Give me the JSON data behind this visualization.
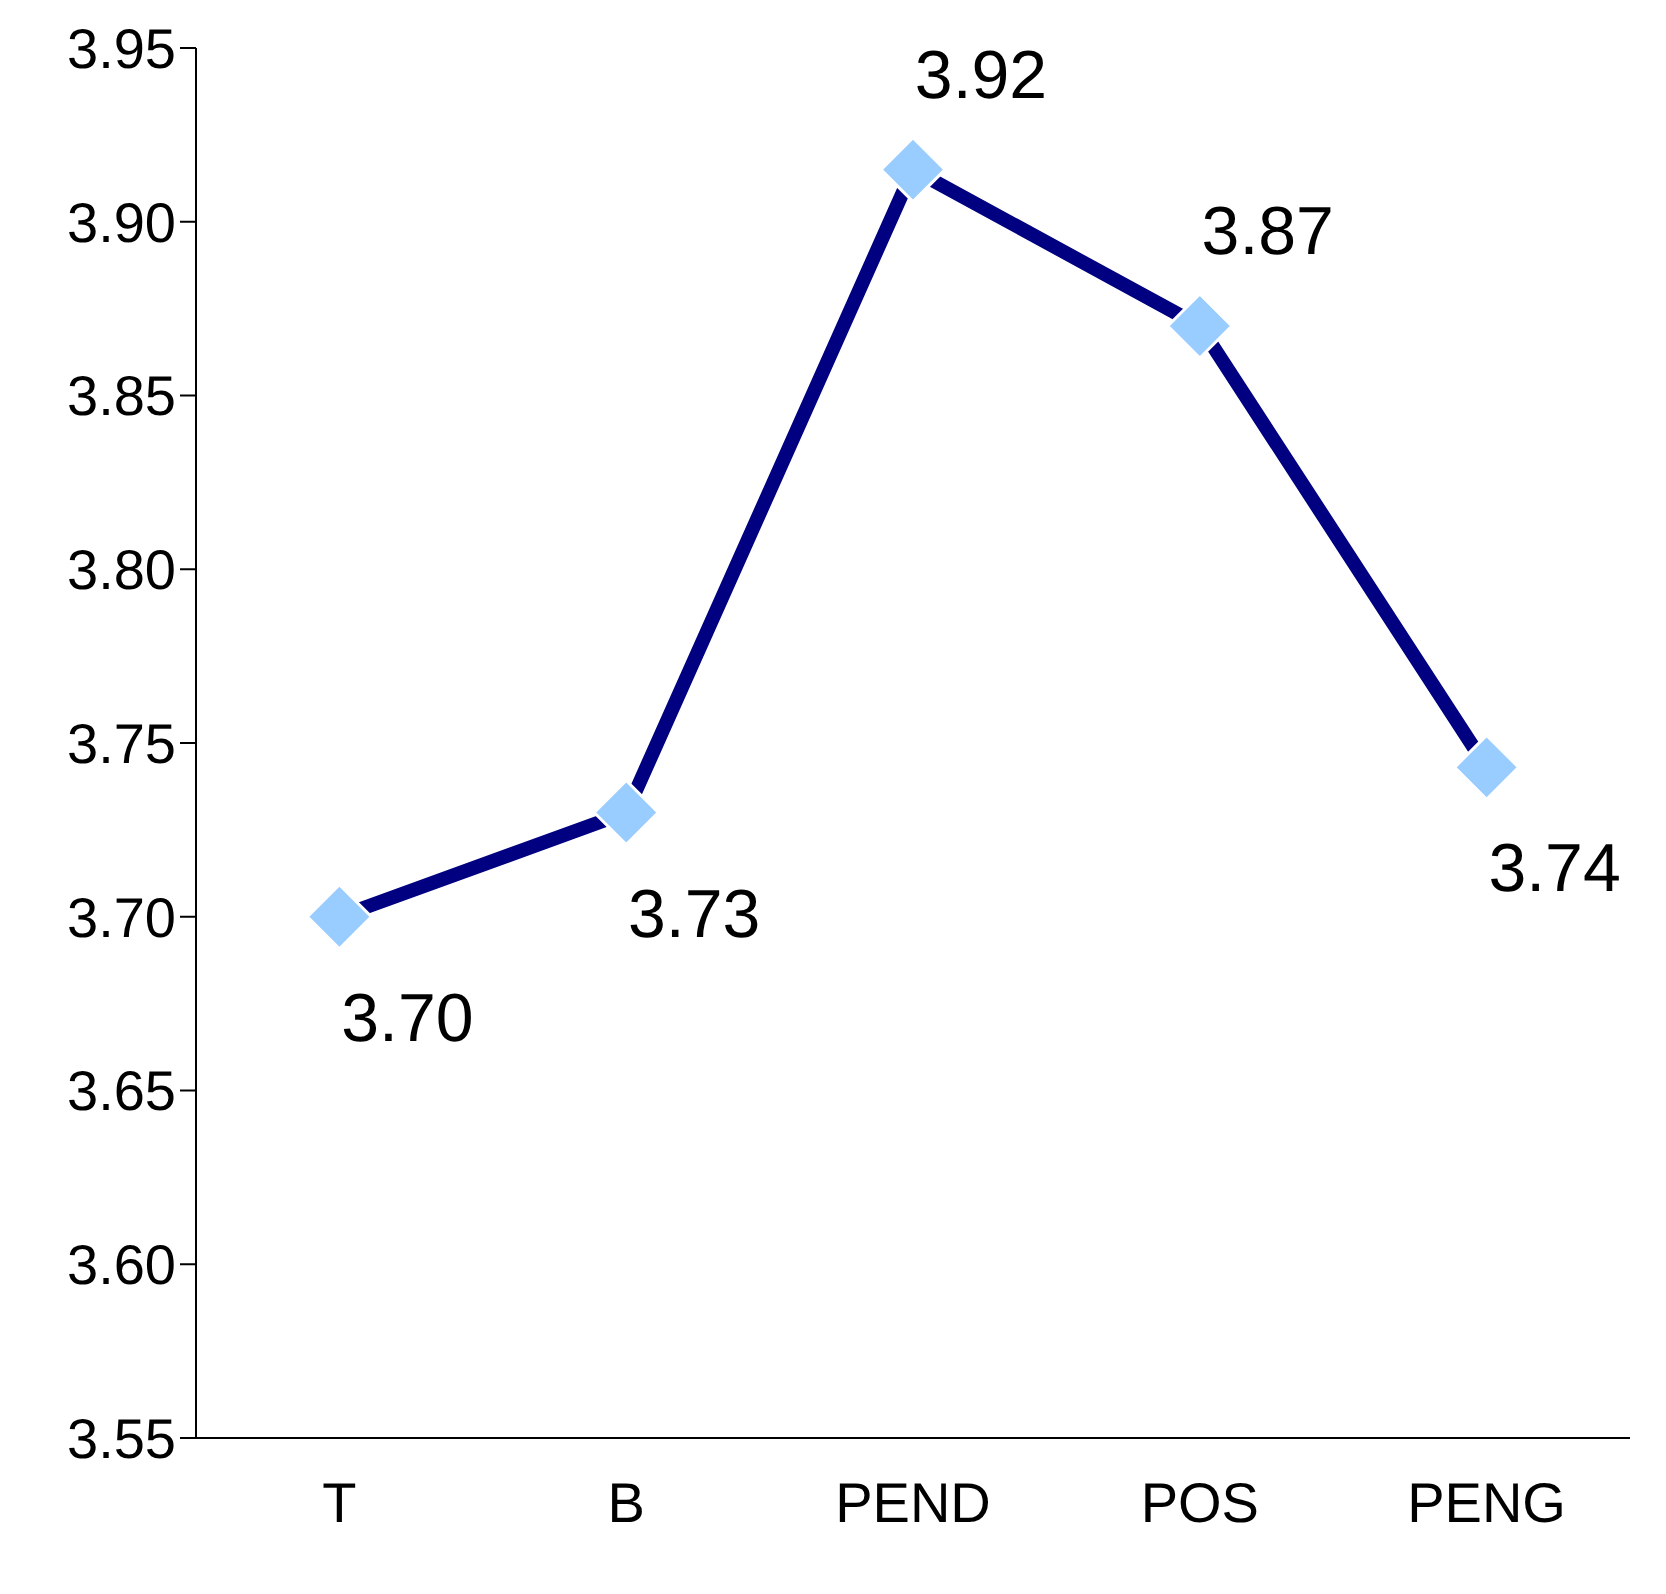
{
  "chart_data": {
    "type": "line",
    "categories": [
      "T",
      "B",
      "PEND",
      "POS",
      "PENG"
    ],
    "series": [
      {
        "color": "#000080",
        "values": [
          3.7,
          3.73,
          3.915,
          3.87,
          3.743
        ],
        "value_labels": [
          "3.70",
          "3.73",
          "3.92",
          "3.87",
          "3.74"
        ]
      }
    ],
    "marker": "diamond",
    "grid": false,
    "legend": false,
    "ylim": [
      3.55,
      3.95
    ],
    "yticks": [
      {
        "value": 3.55,
        "label": "3.55"
      },
      {
        "value": 3.6,
        "label": "3.60"
      },
      {
        "value": 3.65,
        "label": "3.65"
      },
      {
        "value": 3.7,
        "label": "3.70"
      },
      {
        "value": 3.75,
        "label": "3.75"
      },
      {
        "value": 3.8,
        "label": "3.80"
      },
      {
        "value": 3.85,
        "label": "3.85"
      },
      {
        "value": 3.9,
        "label": "3.90"
      },
      {
        "value": 3.95,
        "label": "3.95"
      }
    ]
  }
}
